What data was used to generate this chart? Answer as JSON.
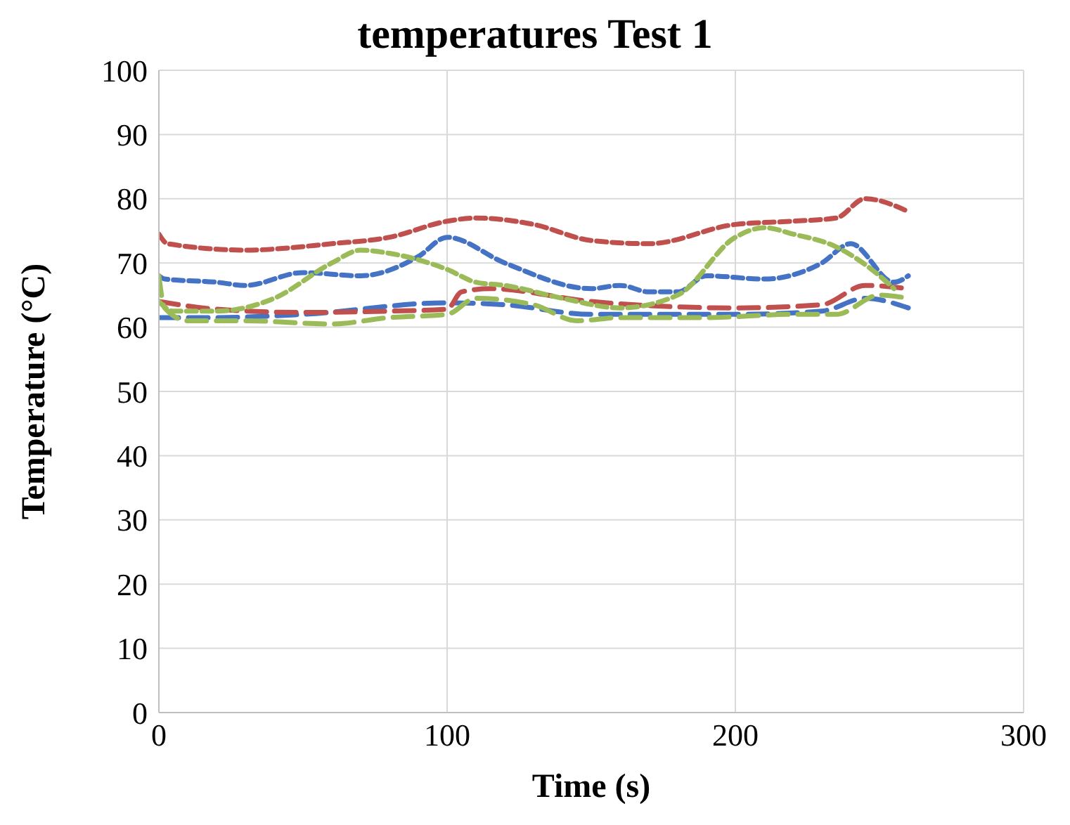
{
  "chart_data": {
    "type": "line",
    "title": "temperatures Test 1",
    "xlabel": "Time (s)",
    "ylabel": "Temperature (°C)",
    "xlim": [
      0,
      300
    ],
    "xticks": [
      0,
      100,
      200,
      300
    ],
    "ylim": [
      0,
      100
    ],
    "yticks": [
      0,
      10,
      20,
      30,
      40,
      50,
      60,
      70,
      80,
      90,
      100
    ],
    "grid": true,
    "legend": false,
    "marker": "none",
    "series": [
      {
        "color": "#4472c4",
        "line_style": "dashed",
        "x": [
          0,
          20,
          50,
          100,
          120,
          150,
          200,
          230,
          245,
          260
        ],
        "values": [
          61.5,
          61.5,
          62,
          63.8,
          63.5,
          62,
          62,
          62.5,
          64.5,
          63
        ]
      },
      {
        "color": "#4472c4",
        "line_style": "dotted",
        "x": [
          0,
          2,
          20,
          30,
          50,
          70,
          90,
          100,
          120,
          150,
          160,
          170,
          180,
          190,
          210,
          230,
          240,
          255,
          260
        ],
        "values": [
          68,
          67.5,
          67,
          66.5,
          68.5,
          68,
          71,
          74,
          70,
          66,
          66.5,
          65.5,
          65.5,
          68,
          67.5,
          70,
          73,
          67,
          68
        ]
      },
      {
        "color": "#c0504d",
        "line_style": "dashed",
        "x": [
          0,
          20,
          50,
          80,
          100,
          105,
          115,
          150,
          200,
          230,
          245,
          260
        ],
        "values": [
          64,
          62.8,
          62.3,
          62.5,
          62.8,
          65.5,
          66,
          64,
          63,
          63.5,
          66.5,
          66
        ]
      },
      {
        "color": "#c0504d",
        "line_style": "dotted",
        "x": [
          0,
          3,
          30,
          60,
          80,
          100,
          110,
          130,
          150,
          170,
          200,
          220,
          235,
          245,
          260
        ],
        "values": [
          74.5,
          73,
          72,
          73,
          74,
          76.5,
          77,
          76,
          73.5,
          73,
          76,
          76.5,
          77,
          80,
          78
        ]
      },
      {
        "color": "#9bbb59",
        "line_style": "dashed",
        "x": [
          0,
          2,
          10,
          30,
          60,
          80,
          100,
          110,
          130,
          145,
          160,
          190,
          220,
          235,
          250,
          260
        ],
        "values": [
          68,
          63,
          61,
          61,
          60.5,
          61.5,
          62,
          64.5,
          63.5,
          61,
          61.5,
          61.5,
          62,
          62,
          65,
          64.5
        ]
      },
      {
        "color": "#9bbb59",
        "line_style": "dotted",
        "x": [
          0,
          5,
          20,
          40,
          60,
          70,
          80,
          100,
          110,
          120,
          140,
          160,
          180,
          200,
          210,
          220,
          235,
          250,
          255
        ],
        "values": [
          64,
          62.5,
          62.5,
          64.5,
          70,
          72,
          71.5,
          69,
          67,
          66.5,
          64.5,
          63,
          65,
          74,
          75.5,
          74.5,
          72.5,
          68,
          66
        ]
      }
    ]
  }
}
